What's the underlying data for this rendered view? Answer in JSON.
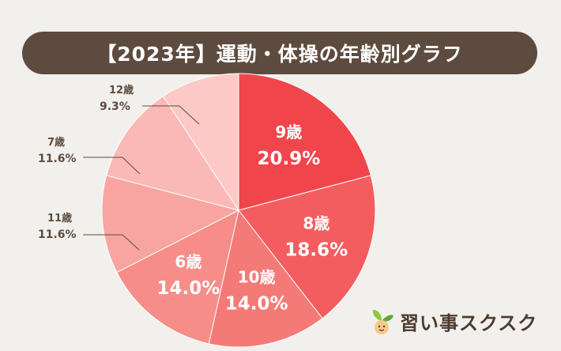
{
  "chart_data": {
    "type": "pie",
    "title": "【2023年】運動・体操の年齢別グラフ",
    "slices": [
      {
        "name": "9歳",
        "value": 20.9,
        "label": "20.9%",
        "color": "#f0454b"
      },
      {
        "name": "8歳",
        "value": 18.6,
        "label": "18.6%",
        "color": "#f35d5f"
      },
      {
        "name": "10歳",
        "value": 14.0,
        "label": "14.0%",
        "color": "#f47a78"
      },
      {
        "name": "6歳",
        "value": 14.0,
        "label": "14.0%",
        "color": "#f68d89"
      },
      {
        "name": "11歳",
        "value": 11.6,
        "label": "11.6%",
        "color": "#f8a5a2"
      },
      {
        "name": "7歳",
        "value": 11.6,
        "label": "11.6%",
        "color": "#fab9b6"
      },
      {
        "name": "12歳",
        "value": 9.3,
        "label": "9.3%",
        "color": "#fcc9c6"
      }
    ]
  },
  "logo": {
    "text": "習い事スクスク",
    "icon": "sprout-icon"
  }
}
